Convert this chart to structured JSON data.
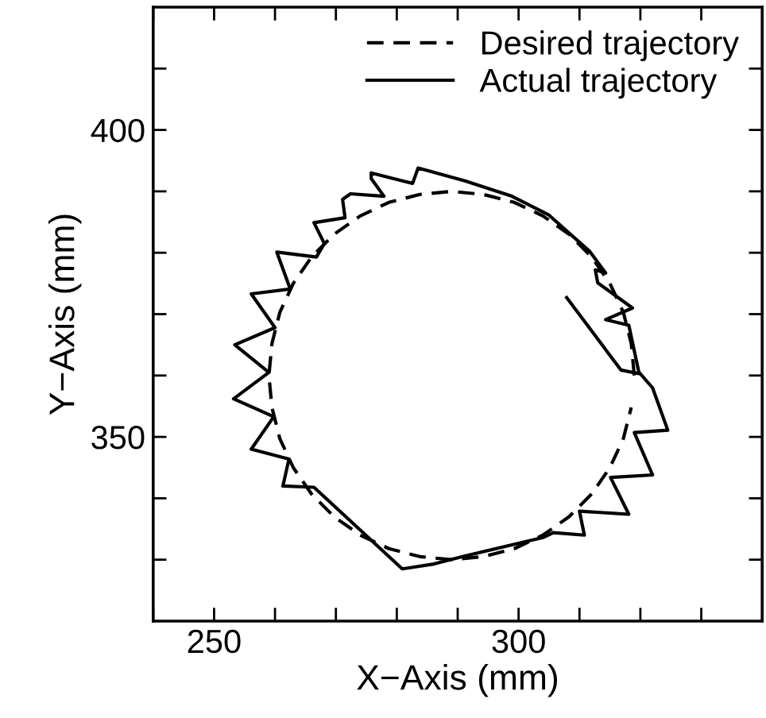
{
  "chart_data": {
    "type": "line",
    "xlabel": "X−Axis (mm)",
    "ylabel": "Y−Axis (mm)",
    "xlim": [
      240,
      340
    ],
    "ylim": [
      320,
      420
    ],
    "xticks": [
      {
        "value": 240,
        "label": null
      },
      250,
      {
        "value": 260,
        "label": null
      },
      {
        "value": 270,
        "label": null
      },
      {
        "value": 280,
        "label": null
      },
      {
        "value": 290,
        "label": null
      },
      300,
      {
        "value": 310,
        "label": null
      },
      {
        "value": 320,
        "label": null
      },
      {
        "value": 330,
        "label": null
      }
    ],
    "yticks": [
      {
        "value": 330,
        "label": null
      },
      {
        "value": 340,
        "label": null
      },
      350,
      {
        "value": 360,
        "label": null
      },
      {
        "value": 370,
        "label": null
      },
      {
        "value": 380,
        "label": null
      },
      {
        "value": 390,
        "label": null
      },
      400,
      {
        "value": 410,
        "label": null
      }
    ],
    "grid": false,
    "legend": "top right",
    "marker": "none",
    "series": [
      {
        "name": "Desired trajectory",
        "color": "#000000",
        "line_style": "dashed",
        "x": [
          319.0,
          318.5,
          317.2,
          315.0,
          312.0,
          308.3,
          304.0,
          299.3,
          294.2,
          289.0,
          283.8,
          278.7,
          274.0,
          269.7,
          266.0,
          263.0,
          260.8,
          259.5,
          259.0,
          259.5,
          260.8,
          263.0,
          266.0,
          269.7,
          274.0,
          278.7,
          283.8,
          289.0,
          294.2,
          299.3,
          304.0,
          308.3,
          312.0,
          315.0,
          317.2,
          318.5
        ],
        "values": [
          360.0,
          365.2,
          370.3,
          375.0,
          379.3,
          383.0,
          386.0,
          388.2,
          389.5,
          390.0,
          389.5,
          388.2,
          386.0,
          383.0,
          379.3,
          375.0,
          370.3,
          365.2,
          360.0,
          354.8,
          349.7,
          345.0,
          340.7,
          337.0,
          334.0,
          331.8,
          330.5,
          330.0,
          330.5,
          331.8,
          334.0,
          337.0,
          340.7,
          345.0,
          349.7,
          354.8
        ]
      },
      {
        "name": "Actual trajectory",
        "color": "#000000",
        "line_style": "solid",
        "x": [
          307.9,
          316.8,
          319.8,
          318.1,
          314.3,
          318.7,
          313.0,
          312.6,
          314.3,
          311.7,
          304.9,
          298.9,
          291.2,
          283.5,
          282.6,
          275.8,
          275.8,
          277.9,
          272.4,
          271.1,
          271.5,
          266.4,
          268.1,
          266.8,
          260.3,
          262.5,
          256.1,
          260.0,
          253.4,
          259.0,
          253.2,
          259.8,
          256.1,
          262.3,
          261.3,
          266.4,
          280.9,
          286.1,
          291.2,
          304.0,
          305.7,
          310.8,
          310.0,
          318.1,
          315.1,
          322.0,
          319.0,
          324.5,
          322.0,
          319.8
        ],
        "values": [
          372.7,
          360.9,
          360.3,
          368.2,
          369.1,
          371.0,
          375.1,
          377.2,
          376.7,
          380.2,
          386.2,
          389.2,
          391.7,
          393.8,
          391.3,
          393.0,
          392.1,
          389.2,
          389.6,
          388.7,
          385.7,
          384.9,
          381.5,
          379.3,
          380.1,
          374.1,
          373.3,
          367.8,
          365.0,
          360.5,
          356.2,
          353.3,
          348.0,
          346.4,
          342.0,
          341.8,
          328.5,
          329.3,
          330.6,
          333.6,
          334.4,
          334.0,
          337.9,
          337.4,
          343.4,
          343.8,
          350.7,
          351.1,
          358.0,
          360.5
        ]
      }
    ]
  }
}
